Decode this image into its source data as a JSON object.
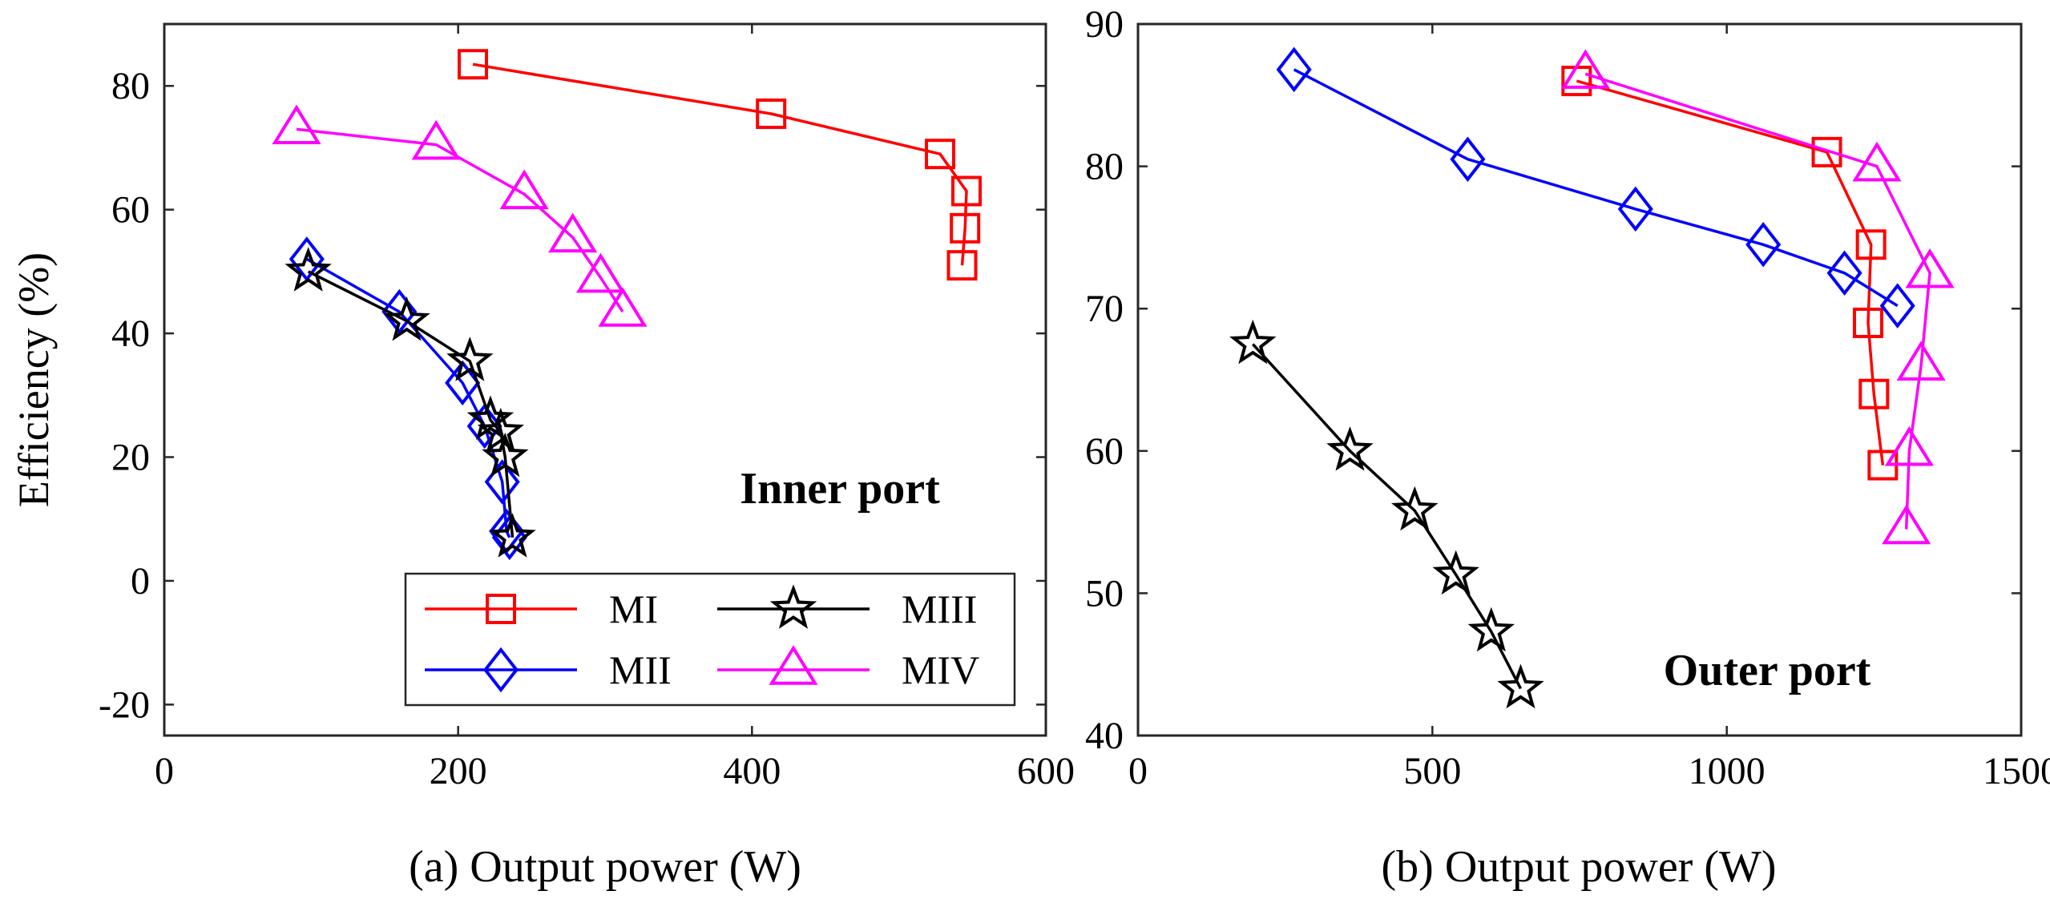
{
  "chart_data": [
    {
      "type": "line",
      "panel": "a",
      "caption": "(a) Output power (W)",
      "xlabel": "(a) Output power (W)",
      "ylabel": "Efficiency (%)",
      "annotation": "Inner port",
      "xlim": [
        0,
        600
      ],
      "ylim": [
        -25,
        90
      ],
      "xticks": [
        0,
        200,
        400,
        600
      ],
      "yticks": [
        -20,
        0,
        20,
        40,
        60,
        80
      ],
      "xtick_labels": [
        "0",
        "200",
        "400",
        "600"
      ],
      "ytick_labels": [
        "-20",
        "0",
        "20",
        "40",
        "60",
        "80"
      ],
      "grid": false,
      "legend": {
        "position": "bottom-right",
        "entries": [
          "MI",
          "MII",
          "MIII",
          "MIV"
        ]
      },
      "series": [
        {
          "name": "MI",
          "marker": "square",
          "color": "#ff0000",
          "x": [
            210,
            413,
            528,
            546,
            545,
            543
          ],
          "y": [
            83.5,
            75.5,
            69,
            63,
            57,
            51
          ]
        },
        {
          "name": "MII",
          "marker": "diamond",
          "color": "#0000ff",
          "x": [
            97,
            160,
            203,
            218,
            230,
            233,
            235
          ],
          "y": [
            52,
            43.5,
            32,
            25,
            16,
            8,
            7
          ]
        },
        {
          "name": "MIII",
          "marker": "star",
          "color": "#000000",
          "x": [
            98,
            165,
            208,
            222,
            229,
            232,
            237
          ],
          "y": [
            50,
            42,
            35.5,
            26,
            24,
            20,
            7
          ]
        },
        {
          "name": "MIV",
          "marker": "triangle",
          "color": "#ff00ff",
          "x": [
            90,
            185,
            245,
            278,
            297,
            312
          ],
          "y": [
            73,
            70.5,
            62.5,
            55.5,
            49,
            43.5
          ]
        }
      ]
    },
    {
      "type": "line",
      "panel": "b",
      "caption": "(b) Output power (W)",
      "xlabel": "(b) Output power (W)",
      "ylabel": "",
      "annotation": "Outer port",
      "xlim": [
        0,
        1500
      ],
      "ylim": [
        40,
        90
      ],
      "xticks": [
        0,
        500,
        1000,
        1500
      ],
      "yticks": [
        40,
        50,
        60,
        70,
        80,
        90
      ],
      "xtick_labels": [
        "0",
        "500",
        "1000",
        "1500"
      ],
      "ytick_labels": [
        "40",
        "50",
        "60",
        "70",
        "80",
        "90"
      ],
      "grid": false,
      "series": [
        {
          "name": "MI",
          "marker": "square",
          "color": "#ff0000",
          "x": [
            745,
            1170,
            1245,
            1240,
            1250,
            1265
          ],
          "y": [
            86,
            81,
            74.5,
            69,
            64,
            59
          ]
        },
        {
          "name": "MII",
          "marker": "diamond",
          "color": "#0000ff",
          "x": [
            265,
            560,
            845,
            1062,
            1200,
            1290
          ],
          "y": [
            86.8,
            80.5,
            77,
            74.5,
            72.5,
            70.2
          ]
        },
        {
          "name": "MIII",
          "marker": "star",
          "color": "#000000",
          "x": [
            195,
            360,
            470,
            540,
            600,
            650
          ],
          "y": [
            67.5,
            60,
            55.8,
            51.3,
            47.3,
            43.3
          ]
        },
        {
          "name": "MIV",
          "marker": "triangle",
          "color": "#ff00ff",
          "x": [
            760,
            1255,
            1345,
            1330,
            1310,
            1305
          ],
          "y": [
            86.5,
            80,
            72.5,
            66,
            60,
            54.5
          ]
        }
      ]
    }
  ]
}
